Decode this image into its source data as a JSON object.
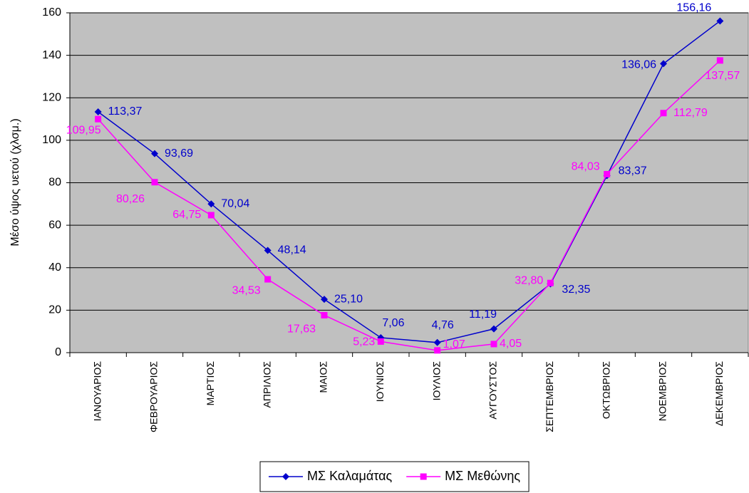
{
  "chart_data": {
    "type": "line",
    "y_label": "Μέσο ύψος υετού (χλσμ.)",
    "categories": [
      "ΙΑΝΟΥΑΡΙΟΣ",
      "ΦΕΒΡΟΥΑΡΙΟΣ",
      "ΜΑΡΤΙΟΣ",
      "ΑΠΡΙΛΙΟΣ",
      "ΜΑΙΟΣ",
      "ΙΟΥΝΙΟΣ",
      "ΙΟΥΛΙΟΣ",
      "ΑΥΓΟΥΣΤΟΣ",
      "ΣΕΠΤΕΜΒΡΙΟΣ",
      "ΟΚΤΩΒΡΙΟΣ",
      "ΝΟΕΜΒΡΙΟΣ",
      "ΔΕΚΕΜΒΡΙΟΣ"
    ],
    "series": [
      {
        "name": "ΜΣ Καλαμάτας",
        "color": "#0000cc",
        "marker": "diamond",
        "values": [
          113.37,
          93.69,
          70.04,
          48.14,
          25.1,
          7.06,
          4.76,
          11.19,
          32.35,
          83.37,
          136.06,
          156.16
        ],
        "value_labels": [
          "113,37",
          "93,69",
          "70,04",
          "48,14",
          "25,10",
          "7,06",
          "4,76",
          "11,19",
          "32,35",
          "83,37",
          "136,06",
          "156,16"
        ]
      },
      {
        "name": "ΜΣ Μεθώνης",
        "color": "#ff00ff",
        "marker": "square",
        "values": [
          109.95,
          80.26,
          64.75,
          34.53,
          17.63,
          5.23,
          1.07,
          4.05,
          32.8,
          84.03,
          112.79,
          137.57
        ],
        "value_labels": [
          "109,95",
          "80,26",
          "64,75",
          "34,53",
          "17,63",
          "5,23",
          "1,07",
          "4,05",
          "32,80",
          "84,03",
          "112,79",
          "137,57"
        ]
      }
    ],
    "ylim": [
      0,
      160
    ],
    "yticks": [
      0,
      20,
      40,
      60,
      80,
      100,
      120,
      140,
      160
    ],
    "grid": true,
    "plot_background": "#c0c0c0",
    "legend": "bottom"
  }
}
